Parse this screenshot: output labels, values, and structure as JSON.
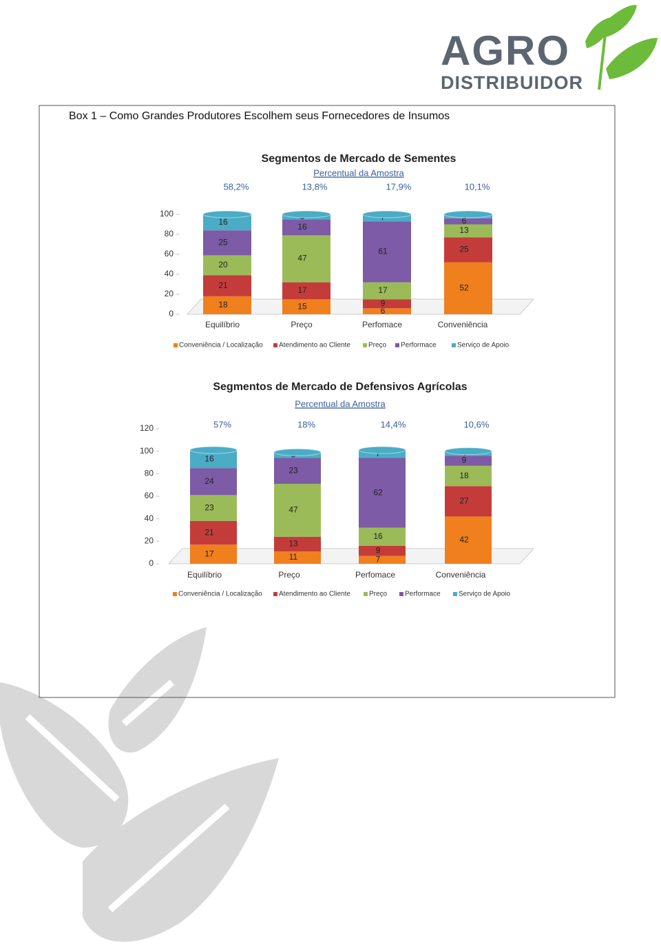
{
  "header": {
    "logo_top": "AGRO",
    "logo_bottom": "DISTRIBUIDOR"
  },
  "box_title": "Box 1 – Como Grandes Produtores Escolhem seus Fornecedores de Insumos",
  "chart_data": [
    {
      "type": "bar",
      "stacked": true,
      "title": "Segmentos de Mercado de Sementes",
      "subtitle": "Percentual da Amostra",
      "categories": [
        "Equilíbrio",
        "Preço",
        "Perfomace",
        "Conveniência"
      ],
      "annotations": [
        "58,2%",
        "13,8%",
        "17,9%",
        "10,1%"
      ],
      "series": [
        {
          "name": "Conveniência / Localização",
          "color": "#f07f1e",
          "values": [
            18,
            15,
            6,
            52
          ]
        },
        {
          "name": "Atendimento ao Cliente",
          "color": "#c43c3a",
          "values": [
            21,
            17,
            9,
            25
          ]
        },
        {
          "name": "Preço",
          "color": "#9bbb59",
          "values": [
            20,
            47,
            17,
            13
          ]
        },
        {
          "name": "Performace",
          "color": "#7d5ba6",
          "values": [
            25,
            16,
            61,
            6
          ]
        },
        {
          "name": "Serviço de Apoio",
          "color": "#4bacc6",
          "values": [
            16,
            5,
            7,
            4
          ]
        }
      ],
      "ylim": [
        0,
        100
      ],
      "yticks": [
        0,
        20,
        40,
        60,
        80,
        100
      ],
      "legend": "bottom"
    },
    {
      "type": "bar",
      "stacked": true,
      "title": "Segmentos de Mercado de Defensivos Agrícolas",
      "subtitle": "Percentual da Amostra",
      "categories": [
        "Equilíbrio",
        "Preço",
        "Perfomace",
        "Conveniência"
      ],
      "annotations": [
        "57%",
        "18%",
        "14,4%",
        "10,6%"
      ],
      "series": [
        {
          "name": "Conveniência / Localização",
          "color": "#f07f1e",
          "values": [
            17,
            11,
            7,
            42
          ]
        },
        {
          "name": "Atendimento ao Cliente",
          "color": "#c43c3a",
          "values": [
            21,
            13,
            9,
            27
          ]
        },
        {
          "name": "Preço",
          "color": "#9bbb59",
          "values": [
            23,
            47,
            16,
            18
          ]
        },
        {
          "name": "Performace",
          "color": "#7d5ba6",
          "values": [
            24,
            23,
            62,
            9
          ]
        },
        {
          "name": "Serviço de Apoio",
          "color": "#4bacc6",
          "values": [
            16,
            5,
            7,
            4
          ]
        }
      ],
      "ylim": [
        0,
        120
      ],
      "yticks": [
        0,
        20,
        40,
        60,
        80,
        100,
        120
      ],
      "legend": "bottom"
    }
  ]
}
